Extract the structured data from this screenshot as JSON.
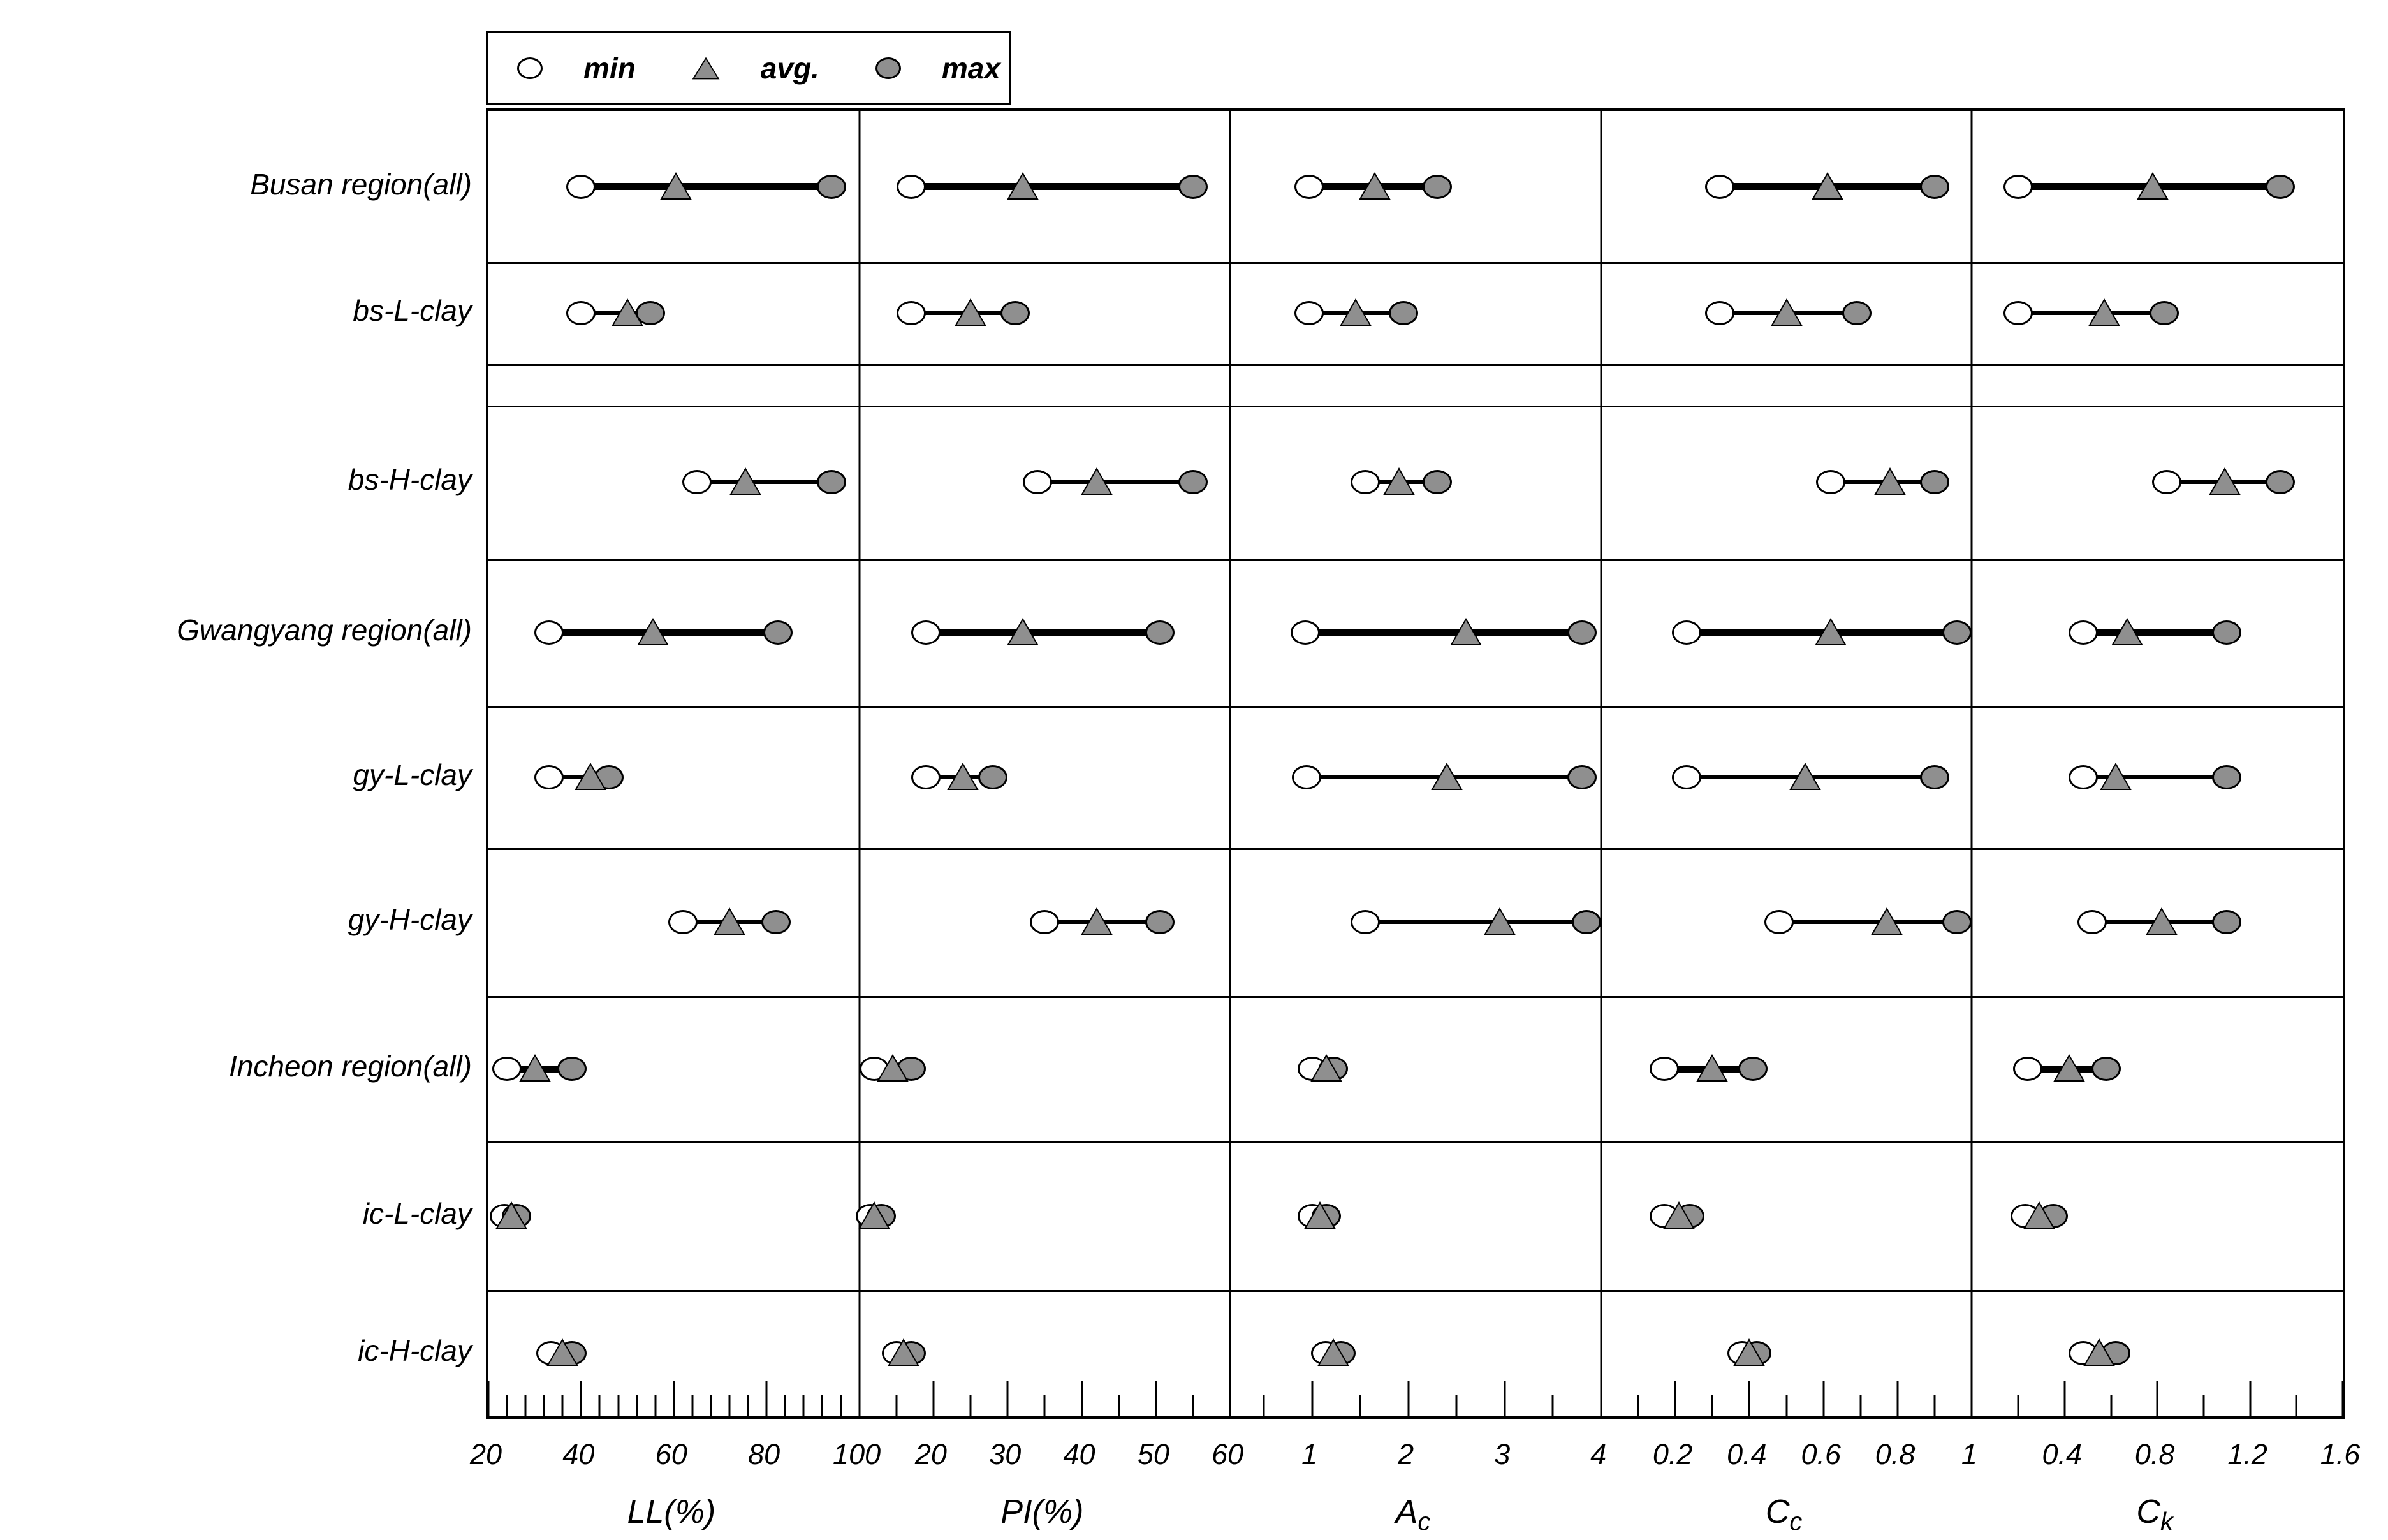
{
  "legend": {
    "items": [
      {
        "icon": "min-open-circle-icon",
        "label": "min"
      },
      {
        "icon": "avg-triangle-icon",
        "label": "avg."
      },
      {
        "icon": "max-filled-circle-icon",
        "label": "max"
      }
    ]
  },
  "colors": {
    "marker_gray": "#8f8f8f",
    "marker_open": "#ffffff",
    "line_black": "#000000"
  },
  "chart_data": {
    "type": "scatter",
    "subtype": "min-avg-max horizontal range dot plot, 5 panels x 9 category rows",
    "grid": "row and panel divider lines on, no gridlines inside panels",
    "legend_position": "top-left above plot",
    "legend_entries": [
      "min",
      "avg.",
      "max"
    ],
    "rows": [
      "Busan region(all)",
      "bs-L-clay",
      "bs-H-clay",
      "Gwangyang region(all)",
      "gy-L-clay",
      "gy-H-clay",
      "Incheon region(all)",
      "ic-L-clay",
      "ic-H-clay"
    ],
    "row_is_region_summary": [
      true,
      false,
      false,
      true,
      false,
      false,
      true,
      false,
      false
    ],
    "panels": [
      {
        "label_main": "LL(%)",
        "label_sub": "",
        "axis_min": 20,
        "axis_max": 100,
        "major_ticks": [
          20,
          40,
          60,
          80,
          100
        ],
        "minor_step": 4,
        "values": [
          [
            40,
            60.5,
            94
          ],
          [
            40,
            50,
            55
          ],
          [
            65,
            75.5,
            94
          ],
          [
            33,
            55.5,
            82.5
          ],
          [
            33,
            42,
            46
          ],
          [
            62,
            72,
            82
          ],
          [
            24,
            30,
            38
          ],
          [
            23.5,
            25,
            26
          ],
          [
            33.5,
            36,
            38
          ]
        ]
      },
      {
        "label_main": "PI(%)",
        "label_sub": "",
        "axis_min": 10,
        "axis_max": 60,
        "major_ticks": [
          20,
          30,
          40,
          50,
          60
        ],
        "minor_step": 5,
        "values": [
          [
            17,
            32,
            55
          ],
          [
            17,
            25,
            31
          ],
          [
            34,
            42,
            55
          ],
          [
            19,
            32,
            50.5
          ],
          [
            19,
            24,
            28
          ],
          [
            35,
            42,
            50.5
          ],
          [
            12,
            14.5,
            17
          ],
          [
            11.5,
            12,
            13
          ],
          [
            15,
            16,
            17
          ]
        ]
      },
      {
        "label_main": "A",
        "label_sub": "c",
        "axis_min": 0.15,
        "axis_max": 4,
        "major_ticks": [
          1,
          2,
          3,
          4
        ],
        "minor_step": 0.5,
        "values": [
          [
            0.97,
            1.65,
            2.3
          ],
          [
            0.97,
            1.45,
            1.95
          ],
          [
            1.55,
            1.9,
            2.3
          ],
          [
            0.93,
            2.6,
            3.8
          ],
          [
            0.94,
            2.4,
            3.8
          ],
          [
            1.55,
            2.95,
            3.85
          ],
          [
            1.0,
            1.15,
            1.22
          ],
          [
            1.0,
            1.08,
            1.15
          ],
          [
            1.14,
            1.22,
            1.3
          ]
        ]
      },
      {
        "label_main": "C",
        "label_sub": "c",
        "axis_min": 0,
        "axis_max": 1,
        "major_ticks": [
          0.2,
          0.4,
          0.6,
          0.8,
          1
        ],
        "minor_step": 0.1,
        "values": [
          [
            0.32,
            0.61,
            0.9
          ],
          [
            0.32,
            0.5,
            0.69
          ],
          [
            0.62,
            0.78,
            0.9
          ],
          [
            0.23,
            0.62,
            0.96
          ],
          [
            0.23,
            0.55,
            0.9
          ],
          [
            0.48,
            0.77,
            0.96
          ],
          [
            0.17,
            0.3,
            0.41
          ],
          [
            0.17,
            0.21,
            0.24
          ],
          [
            0.38,
            0.4,
            0.42
          ]
        ]
      },
      {
        "label_main": "C",
        "label_sub": "k",
        "axis_min": 0,
        "axis_max": 1.6,
        "major_ticks": [
          0.4,
          0.8,
          1.2,
          1.6
        ],
        "minor_step": 0.2,
        "values": [
          [
            0.2,
            0.78,
            1.33
          ],
          [
            0.2,
            0.57,
            0.83
          ],
          [
            0.84,
            1.09,
            1.33
          ],
          [
            0.48,
            0.67,
            1.1
          ],
          [
            0.48,
            0.62,
            1.1
          ],
          [
            0.52,
            0.82,
            1.1
          ],
          [
            0.24,
            0.42,
            0.58
          ],
          [
            0.23,
            0.29,
            0.35
          ],
          [
            0.48,
            0.55,
            0.62
          ]
        ]
      }
    ]
  }
}
